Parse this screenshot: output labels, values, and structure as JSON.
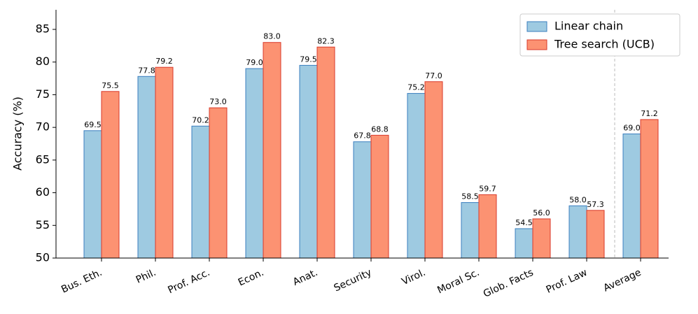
{
  "chart_data": {
    "type": "bar",
    "y_label": "Accuracy (%)",
    "categories": [
      "Bus. Eth.",
      "Phil.",
      "Prof. Acc.",
      "Econ.",
      "Anat.",
      "Security",
      "Virol.",
      "Moral Sc.",
      "Glob. Facts",
      "Prof. Law",
      "Average"
    ],
    "series": [
      {
        "name": "Linear chain",
        "color": "#9ecae1",
        "edgecolor": "#3b7fbf",
        "values": [
          69.5,
          77.8,
          70.2,
          79.0,
          79.5,
          67.8,
          75.2,
          58.5,
          54.5,
          58.0,
          69.0
        ],
        "value_labels": [
          "69.5",
          "77.8",
          "70.2",
          "79.0",
          "79.5",
          "67.8",
          "75.2",
          "58.5",
          "54.5",
          "58.0",
          "69.0"
        ]
      },
      {
        "name": "Tree search (UCB)",
        "color": "#fc9272",
        "edgecolor": "#d93a2b",
        "values": [
          75.5,
          79.2,
          73.0,
          83.0,
          82.3,
          68.8,
          77.0,
          59.7,
          56.0,
          57.3,
          71.2
        ],
        "value_labels": [
          "75.5",
          "79.2",
          "73.0",
          "83.0",
          "82.3",
          "68.8",
          "77.0",
          "59.7",
          "56.0",
          "57.3",
          "71.2"
        ]
      }
    ],
    "ylim": [
      50,
      88
    ],
    "yticks": [
      50,
      55,
      60,
      65,
      70,
      75,
      80,
      85
    ],
    "legend": "upper right",
    "grid": false
  }
}
